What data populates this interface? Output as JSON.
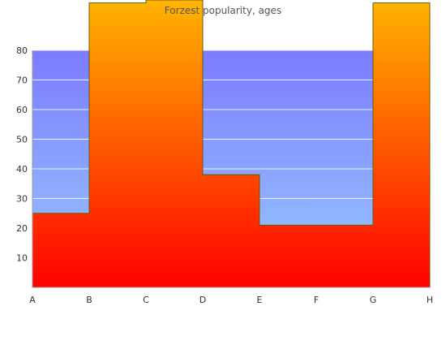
{
  "chart_data": {
    "type": "area",
    "title": "Forzest popularity, ages",
    "xlabel": "",
    "ylabel": "",
    "categories": [
      "A",
      "B",
      "C",
      "D",
      "E",
      "F",
      "G",
      "H"
    ],
    "ylim": [
      0,
      80
    ],
    "yticks": [
      10,
      20,
      30,
      40,
      50,
      60,
      70,
      80
    ],
    "grid": true,
    "legend": "none",
    "step_values": [
      25,
      96,
      97,
      38,
      21,
      21,
      96
    ],
    "colors": {
      "background_top": "#7b7bff",
      "background_bottom": "#99ccff",
      "fill_top": "#ffb400",
      "fill_bottom": "#ff0000",
      "outline": "#6b5a00"
    }
  }
}
